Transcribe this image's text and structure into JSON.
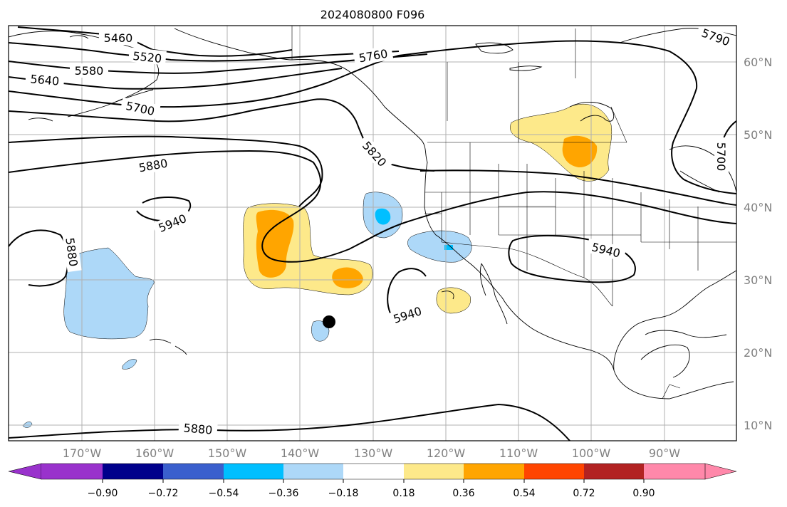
{
  "title": "2024080800 F096",
  "map": {
    "latitude_labels": [
      "60°N",
      "50°N",
      "40°N",
      "30°N",
      "20°N",
      "10°N"
    ],
    "longitude_labels": [
      "170°W",
      "160°W",
      "150°W",
      "140°W",
      "130°W",
      "120°W",
      "110°W",
      "100°W",
      "90°W"
    ],
    "contour_levels": [
      "5460",
      "5520",
      "5580",
      "5640",
      "5700",
      "5760",
      "5790",
      "5820",
      "5880",
      "5940"
    ],
    "contour_labels": [
      {
        "text": "5460"
      },
      {
        "text": "5520"
      },
      {
        "text": "5580"
      },
      {
        "text": "5640"
      },
      {
        "text": "5700"
      },
      {
        "text": "5760"
      },
      {
        "text": "5790"
      },
      {
        "text": "5820"
      },
      {
        "text": "5880"
      },
      {
        "text": "5940"
      },
      {
        "text": "5880"
      },
      {
        "text": "5940"
      },
      {
        "text": "5940"
      },
      {
        "text": "5880"
      },
      {
        "text": "5700"
      }
    ],
    "marker": "black-dot-icon"
  },
  "colorbar": {
    "ticks": [
      "−0.90",
      "−0.72",
      "−0.54",
      "−0.36",
      "−0.18",
      "0.18",
      "0.36",
      "0.54",
      "0.72",
      "0.90"
    ],
    "colors": [
      "#9932cc",
      "#00008b",
      "#3a5fcd",
      "#00bfff",
      "#add8f8",
      "#ffffff",
      "#fde98a",
      "#ffa500",
      "#ff4500",
      "#b22222",
      "#ff88aa"
    ]
  }
}
